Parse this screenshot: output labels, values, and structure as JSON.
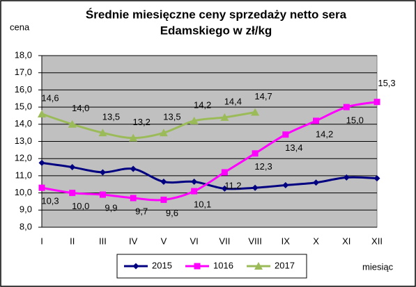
{
  "chart_data": {
    "type": "line",
    "title": [
      "Średnie miesięczne ceny sprzedaży netto sera",
      "Edamskiego w zł/kg"
    ],
    "y_label": "cena",
    "x_label": "miesiąc",
    "categories": [
      "I",
      "II",
      "III",
      "IV",
      "V",
      "VI",
      "VII",
      "VIII",
      "IX",
      "X",
      "XI",
      "XII"
    ],
    "series": [
      {
        "name": "2015",
        "color": "#000080",
        "marker": "diamond",
        "values": [
          11.75,
          11.5,
          11.2,
          11.4,
          10.65,
          10.65,
          10.25,
          10.3,
          10.45,
          10.6,
          10.9,
          10.85
        ]
      },
      {
        "name": "1016",
        "color": "#ff00ff",
        "marker": "square",
        "values": [
          10.3,
          10.0,
          9.9,
          9.7,
          9.6,
          10.1,
          11.2,
          12.3,
          13.4,
          14.2,
          15.0,
          15.3
        ],
        "value_labels": [
          "10,3",
          "10,0",
          "9,9",
          "9,7",
          "9,6",
          "10,1",
          "11,2",
          "12,3",
          "13,4",
          "14,2",
          "15,0",
          "15,3"
        ]
      },
      {
        "name": "2017",
        "color": "#9bbb59",
        "marker": "triangle",
        "values": [
          14.6,
          14.0,
          13.5,
          13.2,
          13.5,
          14.2,
          14.4,
          14.7,
          null,
          null,
          null,
          null
        ],
        "value_labels": [
          "14,6",
          "14,0",
          "13,5",
          "13,2",
          "13,5",
          "14,2",
          "14,4",
          "14,7",
          null,
          null,
          null,
          null
        ]
      }
    ],
    "ylim": [
      8,
      18
    ],
    "yticks": [
      {
        "value": 8,
        "label": "8,0"
      },
      {
        "value": 9,
        "label": "9,0"
      },
      {
        "value": 10,
        "label": "10,0"
      },
      {
        "value": 11,
        "label": "11,0"
      },
      {
        "value": 12,
        "label": "12,0"
      },
      {
        "value": 13,
        "label": "13,0"
      },
      {
        "value": 14,
        "label": "14,0"
      },
      {
        "value": 15,
        "label": "15,0"
      },
      {
        "value": 16,
        "label": "16,0"
      },
      {
        "value": 17,
        "label": "17,0"
      },
      {
        "value": 18,
        "label": "18,0"
      }
    ],
    "grid": true,
    "legend": "bottom",
    "plot_background": "#c0c0c0"
  }
}
